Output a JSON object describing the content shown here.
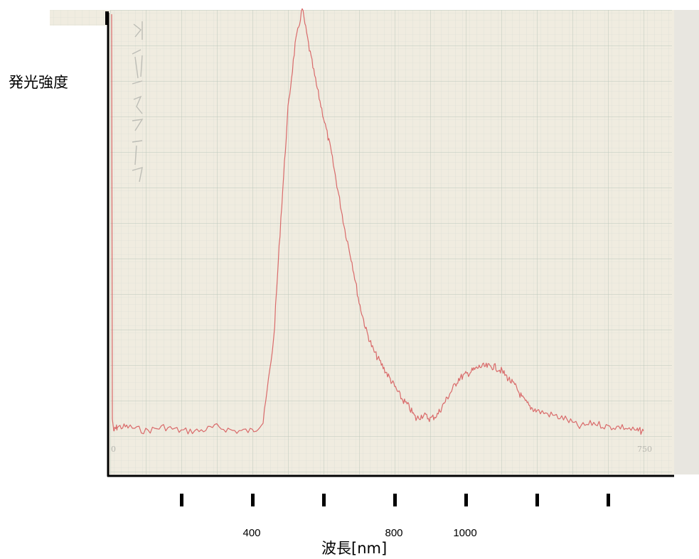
{
  "chart_data": {
    "type": "line",
    "title": "",
    "ylabel": "発光強度",
    "xlabel": "波長[nm]",
    "x_tick_labels": [
      {
        "x": 400,
        "label": "400"
      },
      {
        "x": 800,
        "label": "800"
      },
      {
        "x": 1000,
        "label": "1000"
      }
    ],
    "x_tick_marks": [
      200,
      400,
      600,
      800,
      1000,
      1200,
      1400
    ],
    "xlim": [
      0,
      1600
    ],
    "ylim": [
      0,
      100
    ],
    "grid": true,
    "paper_color": "#f0ece0",
    "grid_minor_color": "#d6dcd3",
    "grid_major_color": "#bcc7bd",
    "line_color": "#d96a6a",
    "series": [
      {
        "name": "",
        "x": [
          10,
          20,
          50,
          100,
          150,
          200,
          250,
          300,
          350,
          400,
          430,
          460,
          480,
          500,
          520,
          540,
          560,
          580,
          600,
          620,
          640,
          660,
          680,
          700,
          720,
          740,
          760,
          780,
          800,
          820,
          840,
          860,
          880,
          900,
          920,
          940,
          960,
          980,
          1000,
          1020,
          1040,
          1060,
          1080,
          1100,
          1120,
          1140,
          1160,
          1180,
          1200,
          1240,
          1280,
          1320,
          1360,
          1400,
          1440,
          1480,
          1500
        ],
        "y": [
          2,
          3,
          3,
          2,
          3,
          2,
          2,
          3,
          2,
          2,
          4,
          25,
          55,
          82,
          98,
          107,
          97,
          88,
          80,
          72,
          62,
          52,
          44,
          34,
          27,
          22,
          19,
          16,
          13,
          10,
          8,
          5,
          6,
          5,
          6,
          9,
          12,
          15,
          16,
          17,
          18,
          18,
          18,
          17,
          15,
          13,
          10,
          8,
          7,
          6,
          5,
          3,
          4,
          3,
          3,
          2,
          2
        ]
      }
    ]
  }
}
